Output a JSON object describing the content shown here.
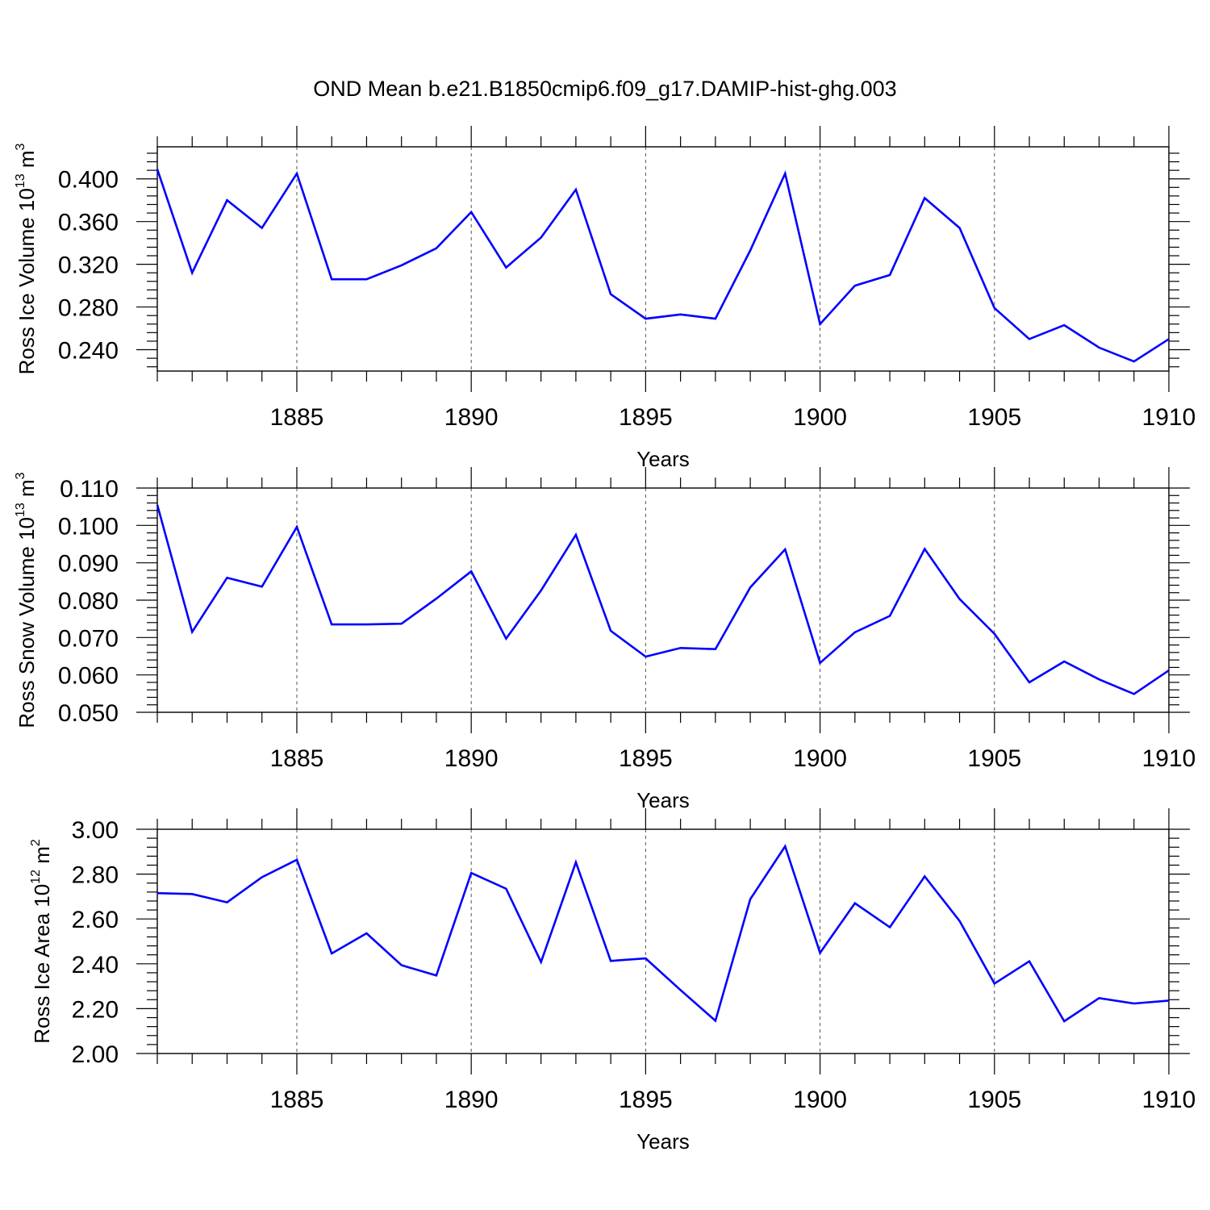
{
  "chart_data": [
    {
      "type": "line",
      "title": "OND Mean b.e21.B1850cmip6.f09_g17.DAMIP-hist-ghg.003",
      "xlabel": "Years",
      "ylabel": {
        "prefix": "Ross Ice Volume 10",
        "exponent": "13",
        "unit": " m",
        "unit_exponent": "3"
      },
      "xlim": [
        1881,
        1910
      ],
      "ylim": [
        0.22,
        0.43
      ],
      "x_ticks": [
        1885,
        1890,
        1895,
        1900,
        1905,
        1910
      ],
      "x_tick_labels": [
        "1885",
        "1890",
        "1895",
        "1900",
        "1905",
        "1910"
      ],
      "y_ticks": [
        0.24,
        0.28,
        0.32,
        0.36,
        0.4
      ],
      "y_tick_labels": [
        "0.240",
        "0.280",
        "0.320",
        "0.360",
        "0.400"
      ],
      "grid": "vertical dashed at major x ticks",
      "series": [
        {
          "name": "Ross Ice Volume",
          "color": "#0000ff",
          "x": [
            1881,
            1882,
            1883,
            1884,
            1885,
            1886,
            1887,
            1888,
            1889,
            1890,
            1891,
            1892,
            1893,
            1894,
            1895,
            1896,
            1897,
            1898,
            1899,
            1900,
            1901,
            1902,
            1903,
            1904,
            1905,
            1906,
            1907,
            1908,
            1909,
            1910
          ],
          "values": [
            0.409,
            0.312,
            0.38,
            0.354,
            0.405,
            0.306,
            0.306,
            0.319,
            0.335,
            0.369,
            0.317,
            0.345,
            0.39,
            0.292,
            0.269,
            0.273,
            0.269,
            0.333,
            0.405,
            0.264,
            0.3,
            0.31,
            0.382,
            0.354,
            0.279,
            0.25,
            0.263,
            0.242,
            0.229,
            0.25
          ]
        }
      ]
    },
    {
      "type": "line",
      "title": "",
      "xlabel": "Years",
      "ylabel": {
        "prefix": "Ross Snow Volume 10",
        "exponent": "13",
        "unit": " m",
        "unit_exponent": "3"
      },
      "xlim": [
        1881,
        1910
      ],
      "ylim": [
        0.05,
        0.11
      ],
      "x_ticks": [
        1885,
        1890,
        1895,
        1900,
        1905,
        1910
      ],
      "x_tick_labels": [
        "1885",
        "1890",
        "1895",
        "1900",
        "1905",
        "1910"
      ],
      "y_ticks": [
        0.05,
        0.06,
        0.07,
        0.08,
        0.09,
        0.1,
        0.11
      ],
      "y_tick_labels": [
        "0.050",
        "0.060",
        "0.070",
        "0.080",
        "0.090",
        "0.100",
        "0.110"
      ],
      "grid": "vertical dashed at major x ticks",
      "series": [
        {
          "name": "Ross Snow Volume",
          "color": "#0000ff",
          "x": [
            1881,
            1882,
            1883,
            1884,
            1885,
            1886,
            1887,
            1888,
            1889,
            1890,
            1891,
            1892,
            1893,
            1894,
            1895,
            1896,
            1897,
            1898,
            1899,
            1900,
            1901,
            1902,
            1903,
            1904,
            1905,
            1906,
            1907,
            1908,
            1909,
            1910
          ],
          "values": [
            0.1055,
            0.0715,
            0.086,
            0.0836,
            0.0996,
            0.0735,
            0.0735,
            0.0737,
            0.0804,
            0.0877,
            0.0697,
            0.0826,
            0.0975,
            0.0718,
            0.0649,
            0.0672,
            0.0669,
            0.0834,
            0.0936,
            0.0632,
            0.0714,
            0.0758,
            0.0937,
            0.0803,
            0.071,
            0.058,
            0.0636,
            0.0588,
            0.0549,
            0.0612
          ]
        }
      ]
    },
    {
      "type": "line",
      "title": "",
      "xlabel": "Years",
      "ylabel": {
        "prefix": "Ross Ice Area 10",
        "exponent": "12",
        "unit": " m",
        "unit_exponent": "2"
      },
      "xlim": [
        1881,
        1910
      ],
      "ylim": [
        2.0,
        3.0
      ],
      "x_ticks": [
        1885,
        1890,
        1895,
        1900,
        1905,
        1910
      ],
      "x_tick_labels": [
        "1885",
        "1890",
        "1895",
        "1900",
        "1905",
        "1910"
      ],
      "y_ticks": [
        2.0,
        2.2,
        2.4,
        2.6,
        2.8,
        3.0
      ],
      "y_tick_labels": [
        "2.00",
        "2.20",
        "2.40",
        "2.60",
        "2.80",
        "3.00"
      ],
      "grid": "vertical dashed at major x ticks",
      "series": [
        {
          "name": "Ross Ice Area",
          "color": "#0000ff",
          "x": [
            1881,
            1882,
            1883,
            1884,
            1885,
            1886,
            1887,
            1888,
            1889,
            1890,
            1891,
            1892,
            1893,
            1894,
            1895,
            1896,
            1897,
            1898,
            1899,
            1900,
            1901,
            1902,
            1903,
            1904,
            1905,
            1906,
            1907,
            1908,
            1909,
            1910
          ],
          "values": [
            2.715,
            2.711,
            2.674,
            2.786,
            2.864,
            2.446,
            2.536,
            2.394,
            2.348,
            2.805,
            2.735,
            2.408,
            2.853,
            2.413,
            2.424,
            2.283,
            2.146,
            2.688,
            2.924,
            2.449,
            2.67,
            2.563,
            2.79,
            2.591,
            2.312,
            2.411,
            2.144,
            2.247,
            2.223,
            2.236
          ]
        }
      ]
    }
  ]
}
